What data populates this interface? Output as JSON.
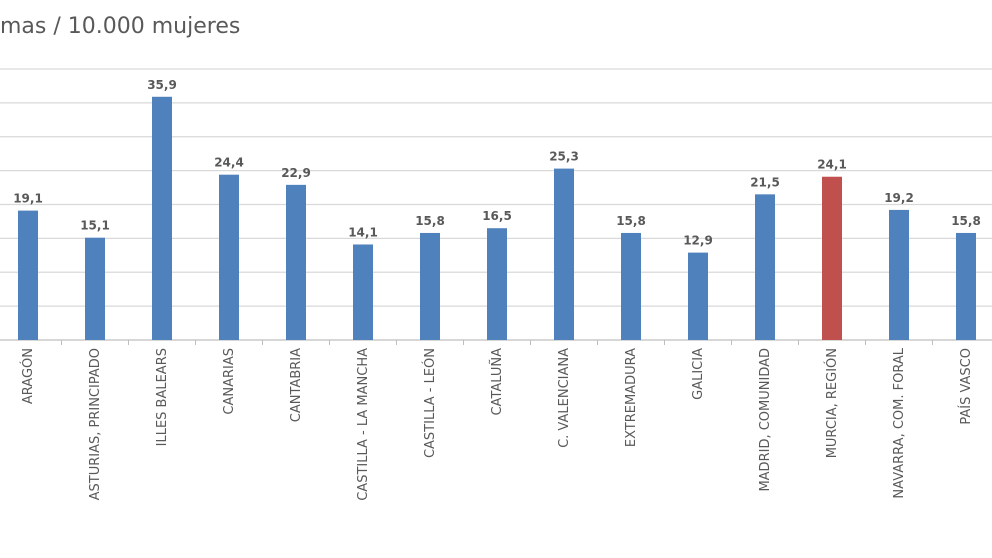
{
  "chart_data": {
    "type": "bar",
    "title": "mas / 10.000 mujeres",
    "categories": [
      "ARAGÓN",
      "ASTURIAS, PRINCIPADO",
      "ILLES BALEARS",
      "CANARIAS",
      "CANTABRIA",
      "CASTILLA - LA MANCHA",
      "CASTILLA - LEÓN",
      "CATALUÑA",
      "C. VALENCIANA",
      "EXTREMADURA",
      "GALICIA",
      "MADRID, COMUNIDAD",
      "MURCIA, REGIÓN",
      "NAVARRA, COM. FORAL",
      "PAÍS VASCO"
    ],
    "values": [
      19.1,
      15.1,
      35.9,
      24.4,
      22.9,
      14.1,
      15.8,
      16.5,
      25.3,
      15.8,
      12.9,
      21.5,
      24.1,
      19.2,
      15.8
    ],
    "value_labels": [
      "19,1",
      "15,1",
      "35,9",
      "24,4",
      "22,9",
      "14,1",
      "15,8",
      "16,5",
      "25,3",
      "15,8",
      "12,9",
      "21,5",
      "24,1",
      "19,2",
      "15,8"
    ],
    "colors": [
      "#4f81bd",
      "#4f81bd",
      "#4f81bd",
      "#4f81bd",
      "#4f81bd",
      "#4f81bd",
      "#4f81bd",
      "#4f81bd",
      "#4f81bd",
      "#4f81bd",
      "#4f81bd",
      "#4f81bd",
      "#c0504d",
      "#4f81bd",
      "#4f81bd"
    ],
    "ylim": [
      0,
      40
    ],
    "yticks": [
      0,
      5,
      10,
      15,
      20,
      25,
      30,
      35,
      40
    ],
    "grid": true
  }
}
